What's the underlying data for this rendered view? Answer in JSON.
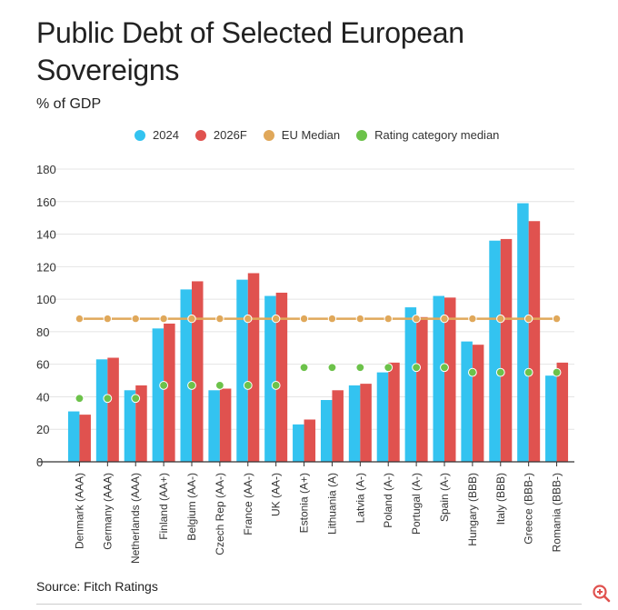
{
  "title": "Public Debt of Selected European Sovereigns",
  "subtitle": "% of GDP",
  "source": "Source: Fitch Ratings",
  "colors": {
    "y2024": "#33c3f0",
    "y2026": "#e0524f",
    "eu_median": "#e0a85a",
    "rating_median": "#6cc24a",
    "grid": "#e4e4e4",
    "axis": "#333333",
    "zoom": "#e0524f"
  },
  "zoom_icon": "zoom-in-icon",
  "chart_data": {
    "type": "bar",
    "title": "Public Debt of Selected European Sovereigns",
    "ylabel": "% of GDP",
    "xlabel": "",
    "ylim": [
      0,
      180
    ],
    "yticks": [
      0,
      20,
      40,
      60,
      80,
      100,
      120,
      140,
      160,
      180
    ],
    "grid": true,
    "legend_position": "top",
    "categories": [
      "Denmark (AAA)",
      "Germany (AAA)",
      "Netherlands (AAA)",
      "Finland (AA+)",
      "Belgium (AA-)",
      "Czech Rep (AA-)",
      "France (AA-)",
      "UK (AA-)",
      "Estonia (A+)",
      "Lithuania (A)",
      "Latvia (A-)",
      "Poland (A-)",
      "Portugal (A-)",
      "Spain (A-)",
      "Hungary (BBB)",
      "Italy (BBB)",
      "Greece (BBB-)",
      "Romania (BBB-)"
    ],
    "series": [
      {
        "name": "2024",
        "kind": "bar",
        "values": [
          31,
          63,
          44,
          82,
          106,
          44,
          112,
          102,
          23,
          38,
          47,
          55,
          95,
          102,
          74,
          136,
          159,
          53
        ]
      },
      {
        "name": "2026F",
        "kind": "bar",
        "values": [
          29,
          64,
          47,
          85,
          111,
          45,
          116,
          104,
          26,
          44,
          48,
          61,
          89,
          101,
          72,
          137,
          148,
          61
        ]
      },
      {
        "name": "EU Median",
        "kind": "line-markers",
        "values": [
          88,
          88,
          88,
          88,
          88,
          88,
          88,
          88,
          88,
          88,
          88,
          88,
          88,
          88,
          88,
          88,
          88,
          88
        ]
      },
      {
        "name": "Rating category median",
        "kind": "markers",
        "values": [
          39,
          39,
          39,
          47,
          47,
          47,
          47,
          47,
          58,
          58,
          58,
          58,
          58,
          58,
          55,
          55,
          55,
          55
        ]
      }
    ]
  }
}
